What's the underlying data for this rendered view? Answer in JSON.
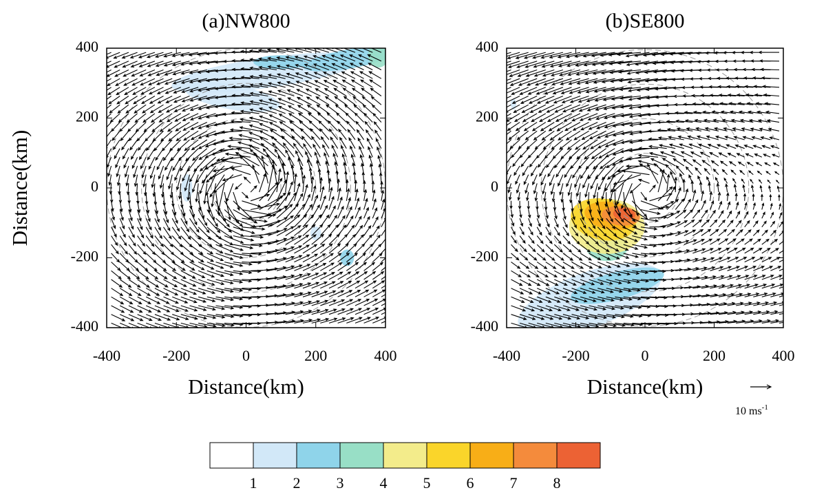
{
  "chart_data": [
    {
      "type": "vector",
      "title": "(a)NW800",
      "xlabel": "Distance(km)",
      "ylabel": "Distance(km)",
      "xlim": [
        -400,
        400
      ],
      "ylim": [
        -400,
        400
      ],
      "xticks": [
        -400,
        -200,
        0,
        200,
        400
      ],
      "yticks": [
        -400,
        -200,
        0,
        200,
        400
      ]
    },
    {
      "type": "vector",
      "title": "(b)SE800",
      "xlabel": "Distance(km)",
      "xlim": [
        -400,
        400
      ],
      "ylim": [
        -400,
        400
      ],
      "xticks": [
        -400,
        -200,
        0,
        200,
        400
      ],
      "yticks": [
        -400,
        -200,
        0,
        200,
        400
      ],
      "reference_label": "10 ms",
      "reference_exponent": "-1"
    }
  ],
  "colorbar": {
    "levels": [
      1,
      2,
      3,
      4,
      5,
      6,
      7,
      8
    ],
    "colors": [
      "#ffffff",
      "#d2e8f8",
      "#8fd4ea",
      "#98dfc6",
      "#f3ec8b",
      "#fad52a",
      "#f8ae17",
      "#f48b3c",
      "#ec6234"
    ]
  }
}
